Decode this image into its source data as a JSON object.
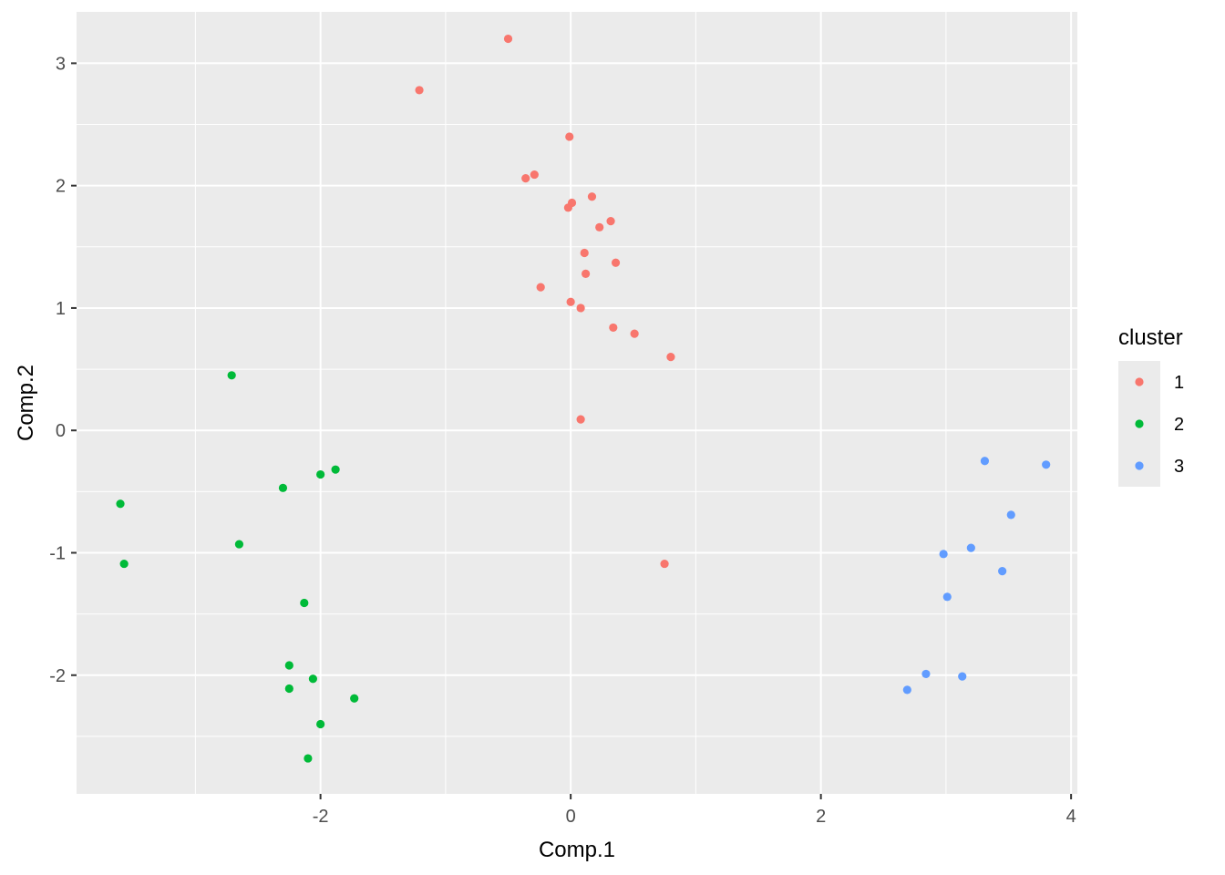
{
  "chart_data": {
    "type": "scatter",
    "title": "",
    "xlabel": "Comp.1",
    "ylabel": "Comp.2",
    "xlim": [
      -3.95,
      4.05
    ],
    "ylim": [
      -2.97,
      3.42
    ],
    "xticks": [
      -2,
      0,
      2,
      4
    ],
    "xtick_labels": [
      "-2",
      "0",
      "2",
      "4"
    ],
    "yticks": [
      -2,
      -1,
      0,
      1,
      2,
      3
    ],
    "ytick_labels": [
      "-2",
      "-1",
      "0",
      "1",
      "2",
      "3"
    ],
    "grid": true,
    "legend": {
      "title": "cluster",
      "placement": "right"
    },
    "series": [
      {
        "name": "1",
        "color": "#F8766D",
        "points": [
          [
            -0.5,
            3.2
          ],
          [
            -1.21,
            2.78
          ],
          [
            -0.01,
            2.4
          ],
          [
            -0.29,
            2.09
          ],
          [
            -0.36,
            2.06
          ],
          [
            0.17,
            1.91
          ],
          [
            0.01,
            1.86
          ],
          [
            -0.02,
            1.82
          ],
          [
            0.32,
            1.71
          ],
          [
            0.23,
            1.66
          ],
          [
            0.11,
            1.45
          ],
          [
            0.36,
            1.37
          ],
          [
            0.12,
            1.28
          ],
          [
            -0.24,
            1.17
          ],
          [
            0.0,
            1.05
          ],
          [
            0.08,
            1.0
          ],
          [
            0.34,
            0.84
          ],
          [
            0.51,
            0.79
          ],
          [
            0.8,
            0.6
          ],
          [
            0.08,
            0.09
          ],
          [
            0.75,
            -1.09
          ]
        ]
      },
      {
        "name": "2",
        "color": "#00BA38",
        "points": [
          [
            -2.71,
            0.45
          ],
          [
            -1.88,
            -0.32
          ],
          [
            -2.0,
            -0.36
          ],
          [
            -2.3,
            -0.47
          ],
          [
            -3.6,
            -0.6
          ],
          [
            -2.65,
            -0.93
          ],
          [
            -3.57,
            -1.09
          ],
          [
            -2.13,
            -1.41
          ],
          [
            -2.25,
            -1.92
          ],
          [
            -2.06,
            -2.03
          ],
          [
            -2.25,
            -2.11
          ],
          [
            -1.73,
            -2.19
          ],
          [
            -2.0,
            -2.4
          ],
          [
            -2.1,
            -2.68
          ]
        ]
      },
      {
        "name": "3",
        "color": "#619CFF",
        "points": [
          [
            3.31,
            -0.25
          ],
          [
            3.8,
            -0.28
          ],
          [
            3.52,
            -0.69
          ],
          [
            3.2,
            -0.96
          ],
          [
            2.98,
            -1.01
          ],
          [
            3.45,
            -1.15
          ],
          [
            3.01,
            -1.36
          ],
          [
            2.84,
            -1.99
          ],
          [
            3.13,
            -2.01
          ],
          [
            2.69,
            -2.12
          ]
        ]
      }
    ]
  }
}
